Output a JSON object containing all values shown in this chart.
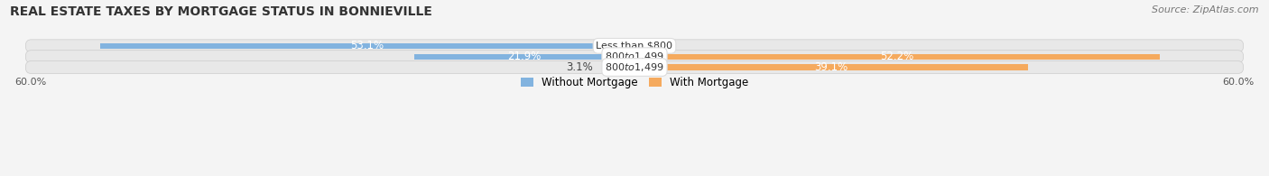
{
  "title": "REAL ESTATE TAXES BY MORTGAGE STATUS IN BONNIEVILLE",
  "source": "Source: ZipAtlas.com",
  "rows": [
    {
      "label": "Less than $800",
      "without_mortgage": 53.1,
      "with_mortgage": 0.0
    },
    {
      "label": "$800 to $1,499",
      "without_mortgage": 21.9,
      "with_mortgage": 52.2
    },
    {
      "label": "$800 to $1,499",
      "without_mortgage": 3.1,
      "with_mortgage": 39.1
    }
  ],
  "color_without": "#82b3df",
  "color_with": "#f5aa5e",
  "xlim": 60.0,
  "legend_without": "Without Mortgage",
  "legend_with": "With Mortgage",
  "bar_height": 0.62,
  "background_row": "#e8e8e8",
  "background_fig": "#f4f4f4",
  "title_fontsize": 10,
  "source_fontsize": 8,
  "label_fontsize": 8,
  "bar_label_fontsize": 8.5,
  "legend_fontsize": 8.5,
  "axis_label_fontsize": 8
}
